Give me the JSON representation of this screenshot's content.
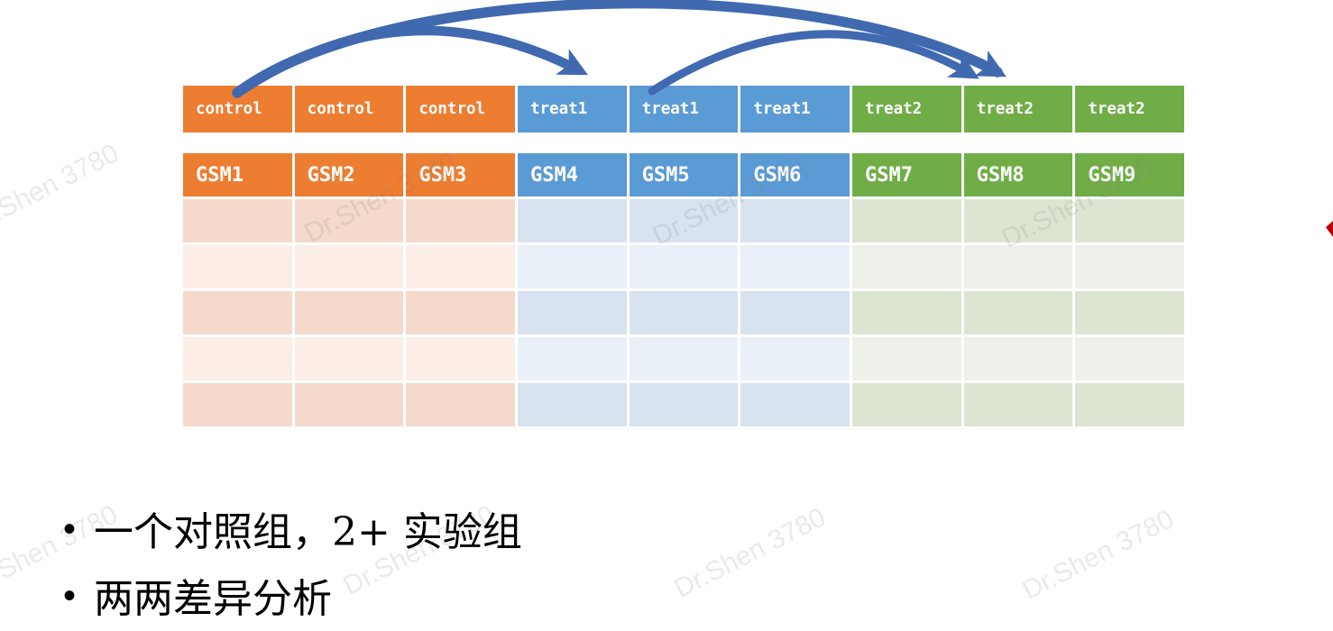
{
  "watermark": {
    "text": "Dr.Shen 3780"
  },
  "table": {
    "groups": [
      {
        "id": "control",
        "label": "control",
        "count": 3,
        "header_color": "#ED7D31",
        "row_dark": "#F5D9CB",
        "row_light": "#FCEDE6"
      },
      {
        "id": "treat1",
        "label": "treat1",
        "count": 3,
        "header_color": "#5B9BD5",
        "row_dark": "#D9E2EF",
        "row_light": "#EAF0F7"
      },
      {
        "id": "treat2",
        "label": "treat2",
        "count": 3,
        "header_color": "#70AD47",
        "row_dark": "#DCE5D1",
        "row_light": "#EDF1E9"
      }
    ],
    "samples": [
      "GSM1",
      "GSM2",
      "GSM3",
      "GSM4",
      "GSM5",
      "GSM6",
      "GSM7",
      "GSM8",
      "GSM9"
    ],
    "body_row_count": 5
  },
  "arrows": {
    "color": "#4169B0",
    "items": [
      {
        "from": "control",
        "to": "treat1"
      },
      {
        "from": "control",
        "to": "treat2"
      },
      {
        "from": "treat1",
        "to": "treat2"
      }
    ]
  },
  "pointer_color": "#C00000",
  "bullets": [
    "一个对照组，2+ 实验组",
    "两两差异分析"
  ]
}
